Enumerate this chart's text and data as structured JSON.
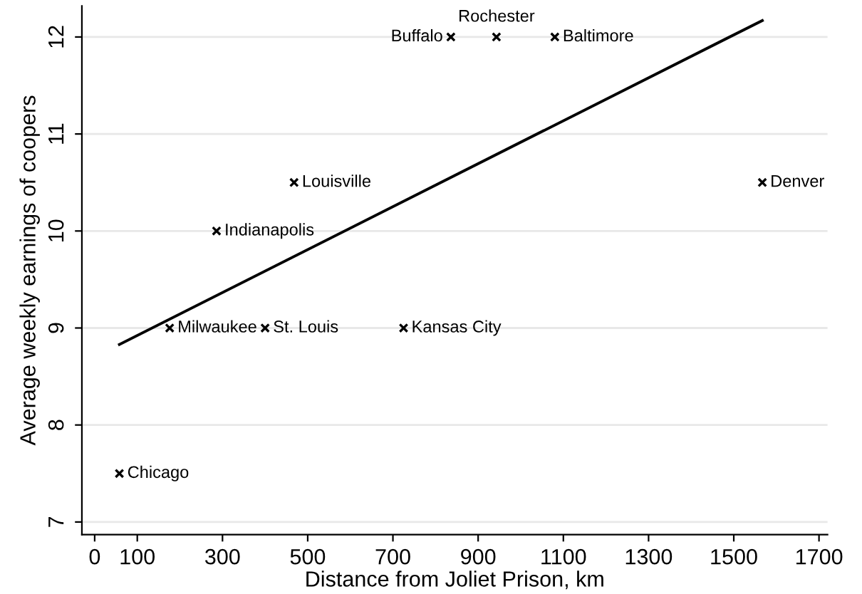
{
  "chart_data": {
    "type": "scatter",
    "xlabel": "Distance from Joliet Prison, km",
    "ylabel": "Average weekly earnings of coopers",
    "series": [
      {
        "color": "#000000",
        "marker": "cross",
        "x": [
          58,
          176,
          286,
          400,
          468,
          725,
          836,
          943,
          1080,
          1567
        ],
        "values": [
          7.5,
          9,
          10,
          9,
          10.5,
          9,
          12,
          12,
          12,
          10.5
        ]
      },
      {
        "type": "line",
        "color": "#000000",
        "marker": "none",
        "line_style": "solid",
        "x": [
          58,
          1567
        ],
        "values": [
          8.83,
          12.17
        ]
      }
    ],
    "annotations": [
      {
        "text": "Chicago",
        "x": 58,
        "y": 7.5
      },
      {
        "text": "Milwaukee",
        "x": 176,
        "y": 9
      },
      {
        "text": "Indianapolis",
        "x": 286,
        "y": 10
      },
      {
        "text": "St. Louis",
        "x": 400,
        "y": 9
      },
      {
        "text": "Louisville",
        "x": 468,
        "y": 10.5
      },
      {
        "text": "Kansas City",
        "x": 725,
        "y": 9
      },
      {
        "text": "Buffalo",
        "x": 836,
        "y": 12
      },
      {
        "text": "Rochester",
        "x": 943,
        "y": 12
      },
      {
        "text": "Baltimore",
        "x": 1080,
        "y": 12
      },
      {
        "text": "Denver",
        "x": 1567,
        "y": 10.5
      }
    ],
    "xlim": [
      -30,
      1720
    ],
    "ylim": [
      6.87,
      12.32
    ],
    "xticks": [
      0,
      100,
      300,
      500,
      700,
      900,
      1100,
      1300,
      1500,
      1700
    ],
    "yticks": [
      7,
      8,
      9,
      10,
      11,
      12
    ],
    "grid": "y",
    "legend": false
  }
}
